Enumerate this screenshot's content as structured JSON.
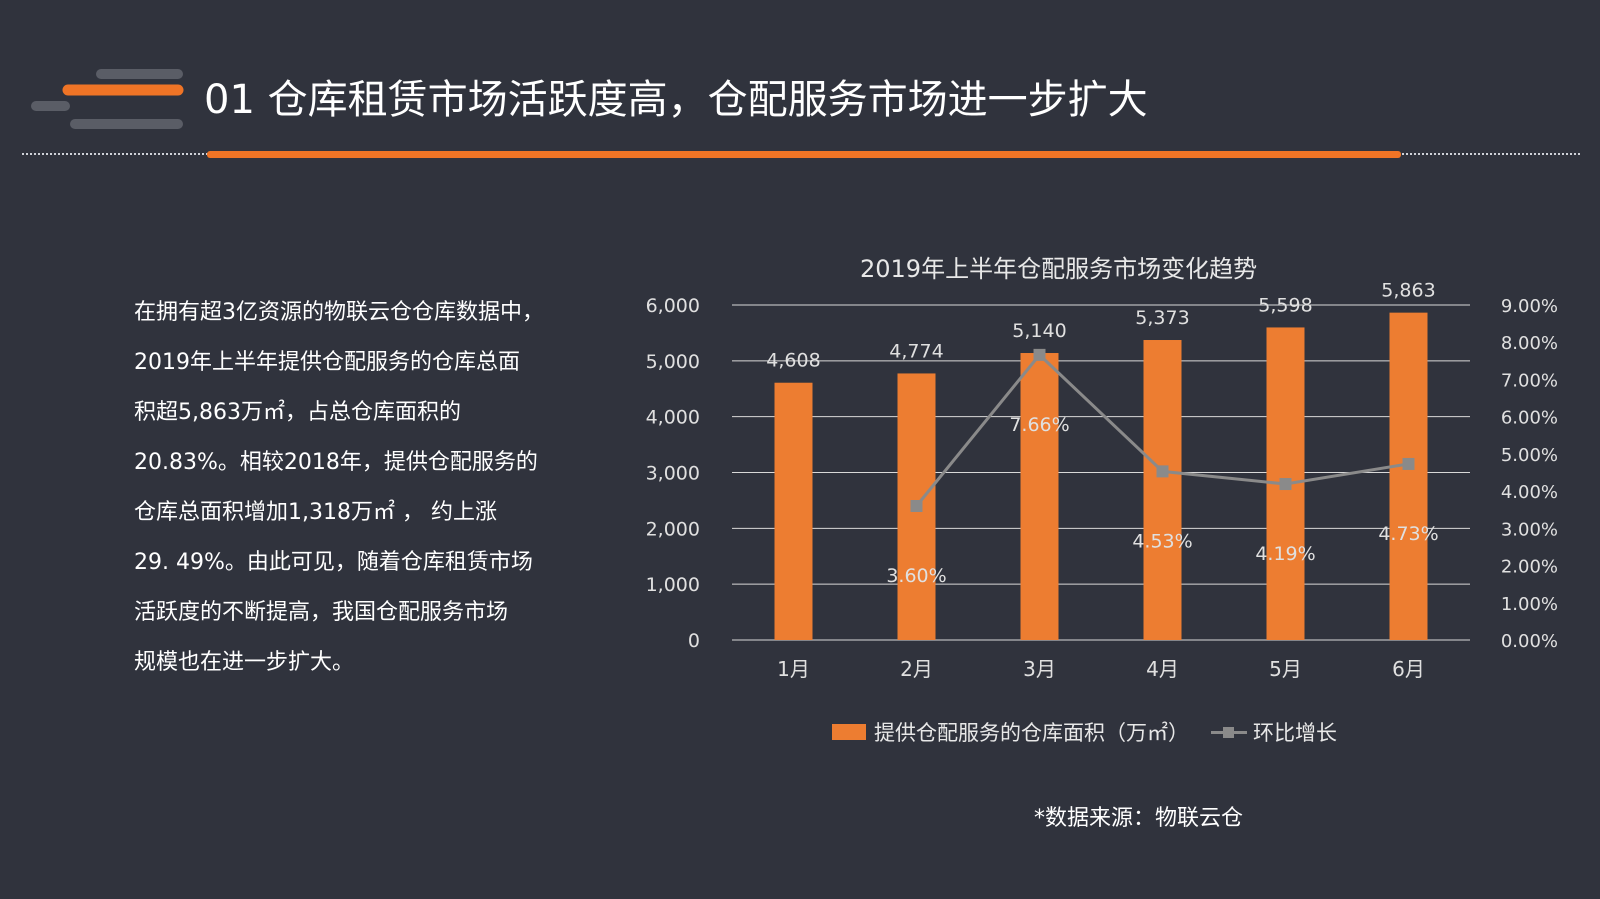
{
  "header": {
    "title": "01  仓库租赁市场活跃度高，仓配服务市场进一步扩大"
  },
  "body": {
    "lines": [
      "在拥有超3亿资源的物联云仓仓库数据中，",
      "2019年上半年提供仓配服务的仓库总面",
      "积超5,863万㎡，占总仓库面积的",
      "20.83%。相较2018年，提供仓配服务的",
      "仓库总面积增加1,318万㎡ ， 约上涨",
      "29. 49%。由此可见，随着仓库租赁市场",
      "活跃度的不断提高，我国仓配服务市场",
      "规模也在进一步扩大。"
    ]
  },
  "source": "*数据来源：物联云仓",
  "colors": {
    "background": "#30333d",
    "accent": "#ef7426",
    "bar": "#ed7d31",
    "line": "#8a8a8a",
    "deco_gray": "#5a5d66"
  },
  "chart_data": {
    "type": "bar",
    "title": "2019年上半年仓配服务市场变化趋势",
    "categories": [
      "1月",
      "2月",
      "3月",
      "4月",
      "5月",
      "6月"
    ],
    "series": [
      {
        "name": "提供仓配服务的仓库面积（万㎡）",
        "type": "bar",
        "axis": "left",
        "values": [
          4608,
          4774,
          5140,
          5373,
          5598,
          5863
        ],
        "labels": [
          "4,608",
          "4,774",
          "5,140",
          "5,373",
          "5,598",
          "5,863"
        ]
      },
      {
        "name": "环比增长",
        "type": "line",
        "axis": "right",
        "values": [
          null,
          3.6,
          7.66,
          4.53,
          4.19,
          4.73
        ],
        "labels": [
          "",
          "3.60%",
          "7.66%",
          "4.53%",
          "4.19%",
          "4.73%"
        ]
      }
    ],
    "y_left": {
      "range": [
        0,
        6000
      ],
      "ticks": [
        0,
        1000,
        2000,
        3000,
        4000,
        5000,
        6000
      ],
      "tick_labels": [
        "0",
        "1,000",
        "2,000",
        "3,000",
        "4,000",
        "5,000",
        "6,000"
      ]
    },
    "y_right": {
      "range": [
        0,
        9
      ],
      "ticks": [
        0,
        1,
        2,
        3,
        4,
        5,
        6,
        7,
        8,
        9
      ],
      "tick_labels": [
        "0.00%",
        "1.00%",
        "2.00%",
        "3.00%",
        "4.00%",
        "5.00%",
        "6.00%",
        "7.00%",
        "8.00%",
        "9.00%"
      ]
    },
    "grid": true,
    "legend_position": "bottom"
  }
}
